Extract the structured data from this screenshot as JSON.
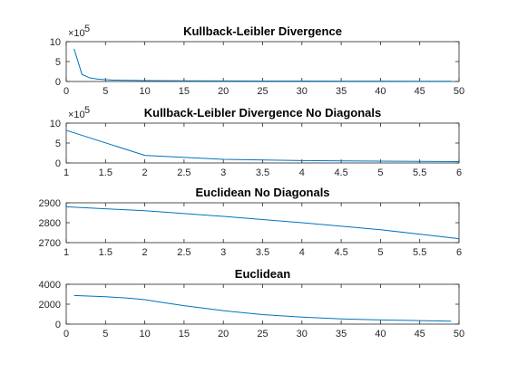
{
  "figure": {
    "background": "#ffffff",
    "line_color": "#0072bd",
    "axis_color": "#262626"
  },
  "chart_data": [
    {
      "type": "line",
      "title": "Kullback-Leibler Divergence",
      "multiplier_base": "×10",
      "multiplier_exp": "5",
      "xlim": [
        0,
        50
      ],
      "ylim": [
        0,
        10
      ],
      "xticks": [
        0,
        5,
        10,
        15,
        20,
        25,
        30,
        35,
        40,
        45,
        50
      ],
      "yticks": [
        0,
        5,
        10
      ],
      "x": [
        1,
        2,
        3,
        4,
        5,
        6,
        8,
        10,
        15,
        20,
        25,
        30,
        35,
        40,
        45,
        49
      ],
      "y": [
        8.2,
        1.8,
        0.9,
        0.6,
        0.45,
        0.35,
        0.28,
        0.24,
        0.18,
        0.15,
        0.12,
        0.1,
        0.09,
        0.08,
        0.07,
        0.06
      ]
    },
    {
      "type": "line",
      "title": "Kullback-Leibler Divergence No Diagonals",
      "multiplier_base": "×10",
      "multiplier_exp": "5",
      "xlim": [
        1,
        6
      ],
      "ylim": [
        0,
        10
      ],
      "xticks": [
        1,
        1.5,
        2,
        2.5,
        3,
        3.5,
        4,
        4.5,
        5,
        5.5,
        6
      ],
      "yticks": [
        0,
        5,
        10
      ],
      "x": [
        1,
        2,
        3,
        4,
        5,
        6
      ],
      "y": [
        8.2,
        1.9,
        0.9,
        0.6,
        0.45,
        0.35
      ]
    },
    {
      "type": "line",
      "title": "Euclidean No Diagonals",
      "xlim": [
        1,
        6
      ],
      "ylim": [
        2700,
        2900
      ],
      "xticks": [
        1,
        1.5,
        2,
        2.5,
        3,
        3.5,
        4,
        4.5,
        5,
        5.5,
        6
      ],
      "yticks": [
        2700,
        2800,
        2900
      ],
      "x": [
        1,
        2,
        3,
        4,
        5,
        6
      ],
      "y": [
        2880,
        2860,
        2832,
        2800,
        2765,
        2720
      ]
    },
    {
      "type": "line",
      "title": "Euclidean",
      "xlim": [
        0,
        50
      ],
      "ylim": [
        0,
        4000
      ],
      "xticks": [
        0,
        5,
        10,
        15,
        20,
        25,
        30,
        35,
        40,
        45,
        50
      ],
      "yticks": [
        0,
        2000,
        4000
      ],
      "x": [
        1,
        5,
        8,
        10,
        12,
        15,
        20,
        25,
        30,
        35,
        40,
        45,
        49
      ],
      "y": [
        2880,
        2750,
        2600,
        2450,
        2200,
        1850,
        1350,
        950,
        700,
        520,
        420,
        350,
        300
      ]
    }
  ]
}
